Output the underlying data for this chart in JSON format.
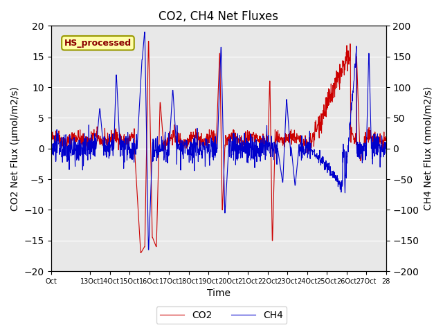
{
  "title": "CO2, CH4 Net Fluxes",
  "xlabel": "Time",
  "ylabel_left": "CO2 Net Flux (μmol/m2/s)",
  "ylabel_right": "CH4 Net Flux (nmol/m2/s)",
  "ylim_left": [
    -20,
    20
  ],
  "ylim_right": [
    -200,
    200
  ],
  "xtick_positions": [
    0,
    2,
    3,
    4,
    5,
    6,
    7,
    8,
    9,
    10,
    11,
    12,
    13,
    14,
    15,
    16,
    17
  ],
  "xtick_labels": [
    "Oct",
    "13Oct",
    "14Oct",
    "15Oct",
    "16Oct",
    "17Oct",
    "18Oct",
    "19Oct",
    "20Oct",
    "21Oct",
    "22Oct",
    "23Oct",
    "24Oct",
    "25Oct",
    "26Oct",
    "27Oct",
    "28"
  ],
  "legend_co2": "CO2",
  "legend_ch4": "CH4",
  "co2_color": "#cc0000",
  "ch4_color": "#0000cc",
  "annotation_text": "HS_processed",
  "annotation_bbox_facecolor": "#ffffaa",
  "annotation_bbox_edgecolor": "#999900",
  "background_color": "#e8e8e8",
  "title_fontsize": 12,
  "axis_label_fontsize": 10,
  "xlim": [
    0,
    17
  ]
}
